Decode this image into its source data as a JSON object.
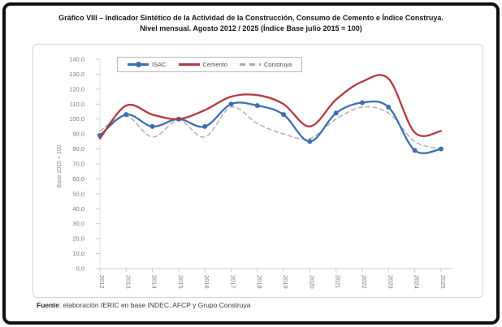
{
  "window": {
    "title_line1": "Gráfico VIII – Indicador Sintético de la Actividad de la Construcción, Consumo de Cemento e Índice Construya.",
    "title_line2": "Nivel mensual. Agosto 2012 / 2025 (Índice Base julio 2015 = 100)"
  },
  "footer": {
    "source_label": "Fuente",
    "source_text": ": elaboración IERIC en base INDEC, AFCP y Grupo Construya"
  },
  "chart_data": {
    "type": "line",
    "title": "Gráfico VIII – Indicador Sintético de la Actividad de la Construcción, Consumo de Cemento e Índice Construya. Nivel mensual. Agosto 2012 / 2025 (Índice Base julio 2015 = 100)",
    "ylabel": "Base 2015 = 100",
    "ylim": [
      0,
      140
    ],
    "ytick_step": 10,
    "grid": false,
    "legend_position": "top-left",
    "x_labels": [
      "2012",
      "2013",
      "2014",
      "2015",
      "2016",
      "2017",
      "2018",
      "2019",
      "2020",
      "2021",
      "2022",
      "2023",
      "2024",
      "2025"
    ],
    "series": [
      {
        "name": "ISAC",
        "color": "#3C6EB4",
        "style": "solid",
        "markers": true,
        "values": [
          89,
          103,
          95,
          100,
          95,
          110,
          109,
          103,
          85,
          104,
          111,
          108,
          79,
          80
        ]
      },
      {
        "name": "Cemento",
        "color": "#B23A3E",
        "style": "solid",
        "markers": false,
        "values": [
          87,
          109,
          103,
          100,
          106,
          115,
          116,
          110,
          95,
          113,
          125,
          127,
          91,
          92
        ]
      },
      {
        "name": "Construya",
        "color": "#ABABAB",
        "style": "dashed",
        "markers": false,
        "values": [
          92,
          102,
          88,
          99,
          88,
          108,
          97,
          90,
          87,
          100,
          108,
          104,
          85,
          80
        ]
      }
    ],
    "axis_color": "#c9c9c9",
    "tick_label_color": "#7a7a7a"
  }
}
